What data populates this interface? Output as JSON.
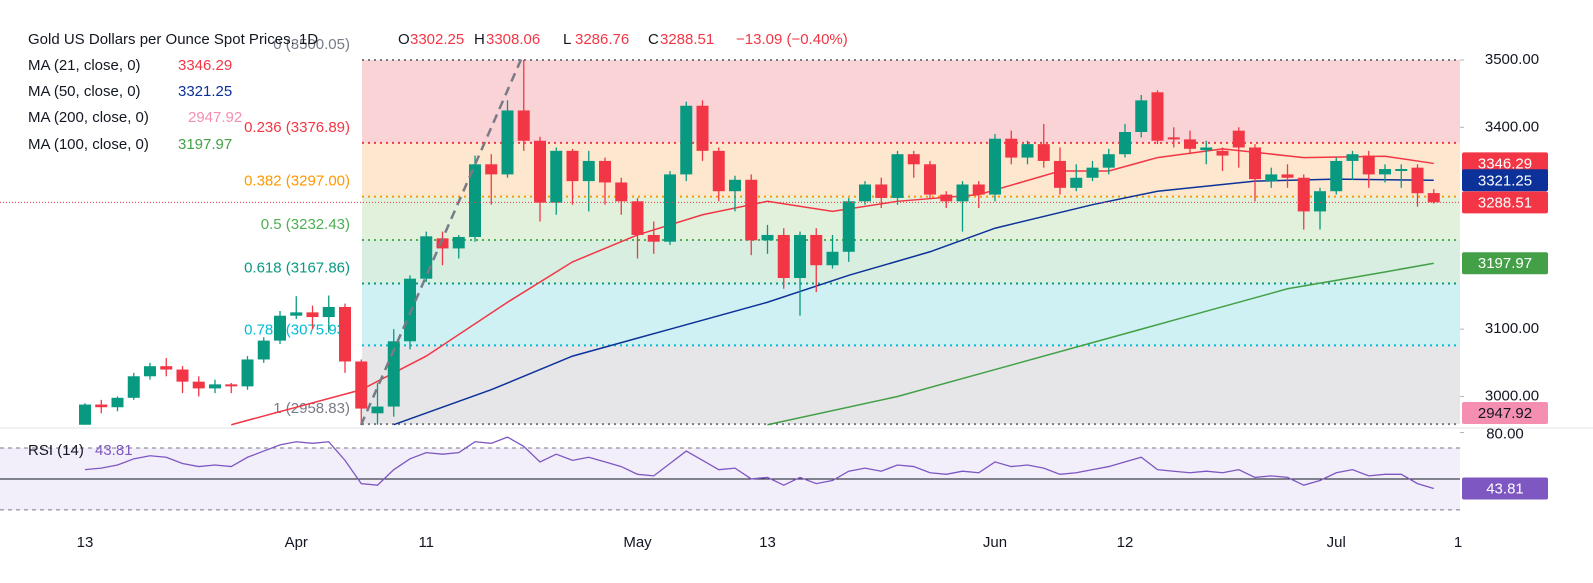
{
  "chart_data": {
    "type": "candlestick",
    "title": "Gold US Dollars per Ounce Spot Prices, 1D",
    "ohlc_keys": [
      "O",
      "H",
      "L",
      "C"
    ],
    "last_ohlc": [
      3302.25,
      3308.06,
      3286.76,
      3288.51
    ],
    "change_label": "−13.09 (−0.40%)",
    "categories": [
      "13",
      null,
      null,
      null,
      null,
      null,
      null,
      null,
      null,
      null,
      null,
      null,
      null,
      "Apr",
      null,
      null,
      null,
      null,
      null,
      null,
      null,
      "11",
      null,
      null,
      null,
      null,
      null,
      null,
      null,
      null,
      null,
      null,
      null,
      null,
      "May",
      null,
      null,
      null,
      null,
      null,
      null,
      null,
      "13",
      null,
      null,
      null,
      null,
      null,
      null,
      null,
      null,
      null,
      null,
      null,
      null,
      null,
      "Jun",
      null,
      null,
      null,
      null,
      null,
      null,
      null,
      "12",
      null,
      null,
      null,
      null,
      null,
      null,
      null,
      null,
      null,
      null,
      null,
      null,
      "Jul",
      null,
      null,
      null,
      null,
      null,
      null
    ],
    "next_period_label": "1",
    "open": [
      2958,
      2988,
      2984,
      2998,
      3030,
      3045,
      3040,
      3022,
      3012,
      3018,
      3015,
      3055,
      3083,
      3120,
      3125,
      3118,
      3133,
      3052,
      2975,
      2985,
      3082,
      3175,
      3235,
      3220,
      3237,
      3345,
      3330,
      3425,
      3380,
      3288,
      3365,
      3320,
      3350,
      3318,
      3290,
      3240,
      3230,
      3330,
      3432,
      3365,
      3305,
      3322,
      3232,
      3240,
      3176,
      3240,
      3195,
      3215,
      3290,
      3315,
      3295,
      3360,
      3345,
      3300,
      3290,
      3315,
      3300,
      3383,
      3355,
      3375,
      3350,
      3310,
      3325,
      3340,
      3360,
      3393,
      3452,
      3385,
      3382,
      3366,
      3365,
      3395,
      3370,
      3320,
      3330,
      3325,
      3275,
      3305,
      3350,
      3358,
      3330,
      3335,
      3340,
      3302.25
    ],
    "high": [
      2990,
      2995,
      3000,
      3035,
      3050,
      3057,
      3045,
      3030,
      3025,
      3020,
      3060,
      3088,
      3127,
      3149,
      3135,
      3150,
      3138,
      3055,
      3020,
      3100,
      3180,
      3245,
      3245,
      3240,
      3358,
      3360,
      3440,
      3500,
      3386,
      3370,
      3368,
      3365,
      3355,
      3325,
      3295,
      3260,
      3335,
      3438,
      3440,
      3370,
      3328,
      3330,
      3255,
      3250,
      3245,
      3250,
      3240,
      3295,
      3320,
      3325,
      3365,
      3365,
      3350,
      3305,
      3320,
      3320,
      3390,
      3395,
      3380,
      3405,
      3370,
      3345,
      3350,
      3368,
      3405,
      3448,
      3455,
      3400,
      3395,
      3380,
      3370,
      3400,
      3375,
      3340,
      3345,
      3330,
      3310,
      3355,
      3365,
      3365,
      3345,
      3345,
      3345,
      3308.06
    ],
    "low": [
      2958,
      2975,
      2978,
      2995,
      3025,
      3030,
      3005,
      3000,
      3005,
      3005,
      3010,
      3050,
      3078,
      3115,
      3100,
      3095,
      3035,
      2958,
      2958,
      2970,
      3070,
      3170,
      3195,
      3205,
      3230,
      3285,
      3325,
      3365,
      3260,
      3270,
      3285,
      3275,
      3285,
      3270,
      3205,
      3212,
      3225,
      3320,
      3350,
      3290,
      3275,
      3210,
      3212,
      3160,
      3120,
      3155,
      3190,
      3200,
      3285,
      3280,
      3285,
      3325,
      3295,
      3280,
      3245,
      3280,
      3290,
      3345,
      3345,
      3340,
      3300,
      3305,
      3320,
      3330,
      3355,
      3385,
      3375,
      3370,
      3360,
      3345,
      3335,
      3340,
      3290,
      3310,
      3310,
      3248,
      3248,
      3300,
      3322,
      3310,
      3318,
      3310,
      3282,
      3286.76
    ],
    "close": [
      2988,
      2984,
      2998,
      3030,
      3045,
      3040,
      3022,
      3012,
      3018,
      3015,
      3055,
      3083,
      3120,
      3125,
      3118,
      3133,
      3052,
      2982,
      2985,
      3082,
      3175,
      3238,
      3220,
      3237,
      3345,
      3330,
      3425,
      3380,
      3288,
      3365,
      3320,
      3350,
      3318,
      3290,
      3240,
      3230,
      3330,
      3432,
      3365,
      3305,
      3322,
      3232,
      3240,
      3176,
      3240,
      3195,
      3215,
      3290,
      3315,
      3295,
      3360,
      3345,
      3300,
      3290,
      3315,
      3300,
      3383,
      3355,
      3375,
      3350,
      3310,
      3325,
      3340,
      3360,
      3393,
      3440,
      3380,
      3382,
      3368,
      3370,
      3358,
      3370,
      3323,
      3330,
      3325,
      3275,
      3305,
      3350,
      3360,
      3330,
      3338,
      3338,
      3302,
      3288.51
    ],
    "up_color": "#089981",
    "down_color": "#f23645",
    "ma": [
      {
        "name": "MA (21, close, 0)",
        "last": 3346.29,
        "color": "#f23645",
        "x": [
          9,
          17,
          21,
          26,
          30,
          34,
          38,
          42,
          46,
          50,
          55,
          60,
          63,
          66,
          70,
          75,
          80,
          83
        ],
        "values": [
          2958,
          3010,
          3060,
          3140,
          3200,
          3240,
          3270,
          3290,
          3275,
          3290,
          3300,
          3335,
          3335,
          3355,
          3368,
          3355,
          3357,
          3346.29
        ]
      },
      {
        "name": "MA (50, close, 0)",
        "last": 3321.25,
        "color": "#0c3299",
        "x": [
          19,
          25,
          30,
          36,
          42,
          47,
          52,
          56,
          62,
          66,
          72,
          77,
          83
        ],
        "values": [
          2958,
          3010,
          3060,
          3100,
          3140,
          3180,
          3215,
          3250,
          3285,
          3305,
          3320,
          3323,
          3321.25
        ]
      },
      {
        "name": "MA (200, close, 0)",
        "last": 2947.92,
        "color": "#f48fb1",
        "x": [],
        "values": []
      },
      {
        "name": "MA (100, close, 0)",
        "last": 3197.97,
        "color": "#43a047",
        "x": [
          42,
          50,
          56,
          62,
          68,
          74,
          80,
          83
        ],
        "values": [
          2958,
          3000,
          3040,
          3080,
          3120,
          3160,
          3185,
          3197.97
        ]
      }
    ],
    "fib_levels": [
      {
        "label": "0 (3500.05)",
        "value": 3500.05,
        "color": "#787b86",
        "fill": "#f9d3d6"
      },
      {
        "label": "0.236 (3376.89)",
        "value": 3376.89,
        "color": "#f23645",
        "fill": "#fde8cf"
      },
      {
        "label": "0.382 (3297.00)",
        "value": 3297.0,
        "color": "#ff9800",
        "fill": "#e2f1dc"
      },
      {
        "label": "0.5 (3232.43)",
        "value": 3232.43,
        "color": "#4caf50",
        "fill": "#d7eee0"
      },
      {
        "label": "0.618 (3167.86)",
        "value": 3167.86,
        "color": "#089981",
        "fill": "#d0f1f3"
      },
      {
        "label": "0.786 (3075.93)",
        "value": 3075.93,
        "color": "#00bcd4",
        "fill": "#e6e6e8"
      },
      {
        "label": "1 (2958.83)",
        "value": 2958.83,
        "color": "#787b86",
        "fill": null
      }
    ],
    "ylim": [
      2957.6,
      3562.4
    ],
    "yticks": [
      {
        "value": 3500,
        "label": "3500.00"
      },
      {
        "value": 3400,
        "label": "3400.00"
      },
      {
        "value": 3100,
        "label": "3100.00"
      },
      {
        "value": 3000,
        "label": "3000.00"
      }
    ],
    "rsi": {
      "name": "RSI (14)",
      "last": 43.81,
      "color": "#7e57c2",
      "values": [
        56,
        57,
        59,
        63,
        65,
        64,
        60,
        58,
        59,
        58,
        64,
        68,
        72,
        74,
        73,
        74,
        62,
        47,
        46,
        56,
        63,
        67,
        66,
        67,
        74,
        73,
        77,
        71,
        61,
        66,
        62,
        64,
        61,
        58,
        53,
        52,
        60,
        68,
        62,
        56,
        57,
        50,
        51,
        46,
        51,
        47,
        49,
        55,
        57,
        55,
        59,
        58,
        54,
        53,
        55,
        54,
        61,
        58,
        59,
        57,
        53,
        54,
        56,
        58,
        61,
        64,
        56,
        55,
        54,
        55,
        54,
        56,
        51,
        52,
        51,
        46,
        49,
        54,
        56,
        52,
        53,
        53,
        47,
        43.81
      ],
      "ylim": [
        23.5,
        82.9
      ],
      "yticks": [
        {
          "value": 80,
          "label": "80.00"
        }
      ],
      "levels": [
        70,
        50,
        30
      ]
    }
  }
}
